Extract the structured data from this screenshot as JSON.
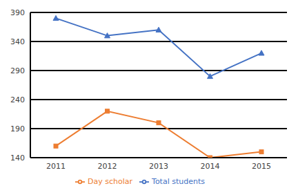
{
  "chart_data": {
    "type": "line",
    "categories": [
      "2011",
      "2012",
      "2013",
      "2014",
      "2015"
    ],
    "series": [
      {
        "name": "Total students",
        "color": "#4472c4",
        "marker": "triangle",
        "values": [
          380,
          350,
          360,
          280,
          320
        ]
      },
      {
        "name": "Day scholar",
        "color": "#ed7d31",
        "marker": "square",
        "values": [
          160,
          220,
          200,
          140,
          150
        ]
      }
    ],
    "ylim": [
      140,
      390
    ],
    "yticks": [
      140,
      190,
      240,
      290,
      340,
      390
    ],
    "grid": true,
    "legend": "bottom"
  }
}
